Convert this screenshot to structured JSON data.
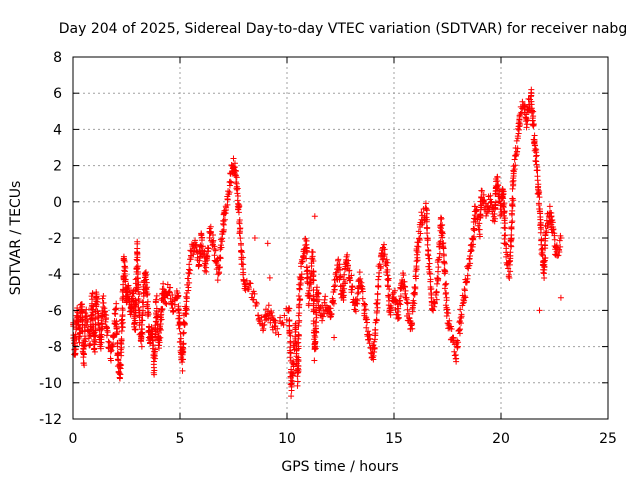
{
  "chart_data": {
    "type": "scatter",
    "title": "Day 204 of 2025, Sidereal Day-to-day VTEC variation (SDTVAR) for receiver nabg",
    "xlabel": "GPS time / hours",
    "ylabel": "SDTVAR / TECUs",
    "xlim": [
      0,
      25
    ],
    "ylim": [
      -12,
      8
    ],
    "xticks": [
      0,
      5,
      10,
      15,
      20,
      25
    ],
    "yticks": [
      -12,
      -10,
      -8,
      -6,
      -4,
      -2,
      0,
      2,
      4,
      6,
      8
    ],
    "grid": true,
    "marker": "+",
    "color": "#ff0000",
    "series": [
      {
        "name": "SDTVAR",
        "profile": [
          [
            0.0,
            -7.0
          ],
          [
            0.1,
            -8.5
          ],
          [
            0.2,
            -6.0
          ],
          [
            0.3,
            -7.5
          ],
          [
            0.4,
            -5.5
          ],
          [
            0.5,
            -8.8
          ],
          [
            0.6,
            -6.2
          ],
          [
            0.8,
            -7.8
          ],
          [
            0.9,
            -5.2
          ],
          [
            1.0,
            -8.2
          ],
          [
            1.1,
            -5.0
          ],
          [
            1.2,
            -6.8
          ],
          [
            1.3,
            -8.0
          ],
          [
            1.4,
            -5.5
          ],
          [
            1.6,
            -7.2
          ],
          [
            1.8,
            -8.5
          ],
          [
            2.0,
            -6.0
          ],
          [
            2.1,
            -8.8
          ],
          [
            2.2,
            -9.5
          ],
          [
            2.3,
            -6.5
          ],
          [
            2.4,
            -3.0
          ],
          [
            2.5,
            -5.5
          ],
          [
            2.6,
            -4.8
          ],
          [
            2.7,
            -6.2
          ],
          [
            2.8,
            -5.0
          ],
          [
            2.9,
            -7.0
          ],
          [
            3.0,
            -2.5
          ],
          [
            3.1,
            -6.5
          ],
          [
            3.2,
            -7.8
          ],
          [
            3.3,
            -5.0
          ],
          [
            3.4,
            -4.0
          ],
          [
            3.5,
            -6.0
          ],
          [
            3.6,
            -8.0
          ],
          [
            3.7,
            -7.0
          ],
          [
            3.8,
            -9.2
          ],
          [
            3.9,
            -5.5
          ],
          [
            4.0,
            -8.0
          ],
          [
            4.1,
            -6.5
          ],
          [
            4.2,
            -4.8
          ],
          [
            4.3,
            -5.5
          ],
          [
            4.5,
            -4.8
          ],
          [
            4.7,
            -6.0
          ],
          [
            4.9,
            -5.2
          ],
          [
            5.0,
            -7.5
          ],
          [
            5.1,
            -9.0
          ],
          [
            5.2,
            -6.5
          ],
          [
            5.3,
            -5.5
          ],
          [
            5.5,
            -3.0
          ],
          [
            5.7,
            -2.2
          ],
          [
            5.9,
            -3.5
          ],
          [
            6.0,
            -2.0
          ],
          [
            6.2,
            -3.8
          ],
          [
            6.4,
            -1.5
          ],
          [
            6.6,
            -2.5
          ],
          [
            6.8,
            -4.0
          ],
          [
            7.0,
            -1.5
          ],
          [
            7.1,
            -0.5
          ],
          [
            7.3,
            0.8
          ],
          [
            7.5,
            2.4
          ],
          [
            7.6,
            1.5
          ],
          [
            7.7,
            0.5
          ],
          [
            7.8,
            -1.5
          ],
          [
            8.0,
            -4.8
          ],
          [
            8.2,
            -4.5
          ],
          [
            8.7,
            -6.2
          ],
          [
            8.9,
            -6.8
          ],
          [
            9.1,
            -6.0
          ],
          [
            9.3,
            -6.5
          ],
          [
            9.5,
            -7.2
          ],
          [
            10.1,
            -6.0
          ],
          [
            10.2,
            -10.3
          ],
          [
            10.4,
            -7.0
          ],
          [
            10.5,
            -9.8
          ],
          [
            10.6,
            -4.5
          ],
          [
            10.7,
            -3.5
          ],
          [
            10.9,
            -2.0
          ],
          [
            11.0,
            -5.5
          ],
          [
            11.2,
            -3.0
          ],
          [
            11.3,
            -8.5
          ],
          [
            11.4,
            -5.0
          ],
          [
            11.6,
            -6.2
          ],
          [
            11.8,
            -5.5
          ],
          [
            12.0,
            -6.5
          ],
          [
            12.2,
            -5.0
          ],
          [
            12.4,
            -3.5
          ],
          [
            12.6,
            -5.5
          ],
          [
            12.8,
            -3.0
          ],
          [
            13.0,
            -4.5
          ],
          [
            13.2,
            -6.0
          ],
          [
            13.4,
            -4.2
          ],
          [
            13.6,
            -5.5
          ],
          [
            13.8,
            -7.5
          ],
          [
            14.0,
            -8.5
          ],
          [
            14.1,
            -7.8
          ],
          [
            14.3,
            -4.0
          ],
          [
            14.5,
            -2.5
          ],
          [
            14.7,
            -3.8
          ],
          [
            14.8,
            -6.0
          ],
          [
            15.0,
            -5.0
          ],
          [
            15.2,
            -6.5
          ],
          [
            15.4,
            -4.0
          ],
          [
            15.6,
            -5.8
          ],
          [
            15.8,
            -7.0
          ],
          [
            16.0,
            -4.5
          ],
          [
            16.1,
            -2.5
          ],
          [
            16.3,
            -1.0
          ],
          [
            16.5,
            -0.5
          ],
          [
            16.6,
            -3.0
          ],
          [
            16.8,
            -6.0
          ],
          [
            17.0,
            -5.0
          ],
          [
            17.2,
            -1.0
          ],
          [
            17.3,
            -2.5
          ],
          [
            17.5,
            -6.5
          ],
          [
            17.7,
            -7.5
          ],
          [
            17.9,
            -8.5
          ],
          [
            18.1,
            -6.5
          ],
          [
            18.3,
            -5.0
          ],
          [
            18.5,
            -3.5
          ],
          [
            18.7,
            -2.0
          ],
          [
            18.8,
            -0.5
          ],
          [
            19.0,
            -1.5
          ],
          [
            19.1,
            0.5
          ],
          [
            19.3,
            -0.5
          ],
          [
            19.5,
            0.2
          ],
          [
            19.7,
            -1.0
          ],
          [
            19.8,
            1.5
          ],
          [
            20.0,
            -0.5
          ],
          [
            20.1,
            0.8
          ],
          [
            20.2,
            -2.5
          ],
          [
            20.4,
            -4.0
          ],
          [
            20.5,
            -1.5
          ],
          [
            20.6,
            2.0
          ],
          [
            20.8,
            3.5
          ],
          [
            20.9,
            5.0
          ],
          [
            21.1,
            5.3
          ],
          [
            21.2,
            4.5
          ],
          [
            21.4,
            6.0
          ],
          [
            21.5,
            4.5
          ],
          [
            21.6,
            3.0
          ],
          [
            21.7,
            1.5
          ],
          [
            21.8,
            -0.5
          ],
          [
            21.9,
            -2.5
          ],
          [
            22.0,
            -4.0
          ],
          [
            22.1,
            -1.5
          ],
          [
            22.3,
            -0.5
          ],
          [
            22.4,
            -1.5
          ],
          [
            22.6,
            -3.0
          ],
          [
            22.8,
            -2.0
          ]
        ],
        "outliers": [
          [
            8.5,
            -2.0
          ],
          [
            9.2,
            -4.2
          ],
          [
            9.1,
            -2.3
          ],
          [
            11.3,
            -0.8
          ],
          [
            12.2,
            -7.5
          ],
          [
            21.8,
            -6.0
          ],
          [
            22.8,
            -5.3
          ]
        ]
      }
    ]
  }
}
